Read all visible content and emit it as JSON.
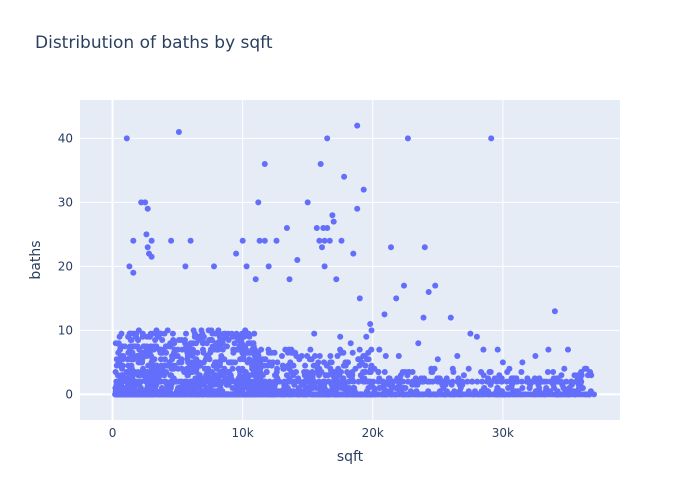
{
  "chart_data": {
    "type": "scatter",
    "title": "Distribution of baths by sqft",
    "xlabel": "sqft",
    "ylabel": "baths",
    "xlim": [
      -2500,
      39000
    ],
    "ylim": [
      -4,
      46
    ],
    "x_ticks": [
      {
        "value": 0,
        "label": "0"
      },
      {
        "value": 10000,
        "label": "10k"
      },
      {
        "value": 20000,
        "label": "20k"
      },
      {
        "value": 30000,
        "label": "30k"
      }
    ],
    "y_ticks": [
      {
        "value": 0,
        "label": "0"
      },
      {
        "value": 10,
        "label": "10"
      },
      {
        "value": 20,
        "label": "20"
      },
      {
        "value": 30,
        "label": "30"
      },
      {
        "value": 40,
        "label": "40"
      }
    ],
    "grid": true,
    "marker_color": "#636efa",
    "plot_background": "#e5ecf6",
    "points": [
      [
        1100,
        40
      ],
      [
        5100,
        41
      ],
      [
        16500,
        40
      ],
      [
        18800,
        42
      ],
      [
        22700,
        40
      ],
      [
        29100,
        40
      ],
      [
        11700,
        36
      ],
      [
        16000,
        36
      ],
      [
        17800,
        34
      ],
      [
        19300,
        32
      ],
      [
        2200,
        30
      ],
      [
        2500,
        30
      ],
      [
        2700,
        29
      ],
      [
        11200,
        30
      ],
      [
        15000,
        30
      ],
      [
        18800,
        29
      ],
      [
        16900,
        28
      ],
      [
        17000,
        27
      ],
      [
        13400,
        26
      ],
      [
        15700,
        26
      ],
      [
        16200,
        26
      ],
      [
        16500,
        26
      ],
      [
        2600,
        25
      ],
      [
        1600,
        24
      ],
      [
        3000,
        24
      ],
      [
        4500,
        24
      ],
      [
        6000,
        24
      ],
      [
        10000,
        24
      ],
      [
        11300,
        24
      ],
      [
        11700,
        24
      ],
      [
        12600,
        24
      ],
      [
        15900,
        24
      ],
      [
        16300,
        24
      ],
      [
        16700,
        24
      ],
      [
        17600,
        24
      ],
      [
        2700,
        23
      ],
      [
        21400,
        23
      ],
      [
        24000,
        23
      ],
      [
        16100,
        23
      ],
      [
        2800,
        22
      ],
      [
        3000,
        21.5
      ],
      [
        9500,
        22
      ],
      [
        18500,
        22
      ],
      [
        14200,
        21
      ],
      [
        1300,
        20
      ],
      [
        1600,
        19
      ],
      [
        5600,
        20
      ],
      [
        7800,
        20
      ],
      [
        10300,
        20
      ],
      [
        12000,
        20
      ],
      [
        16300,
        20
      ],
      [
        11000,
        18
      ],
      [
        13600,
        18
      ],
      [
        17200,
        18
      ],
      [
        19000,
        15
      ],
      [
        21800,
        15
      ],
      [
        22400,
        17
      ],
      [
        24800,
        17
      ],
      [
        24300,
        16
      ],
      [
        26000,
        12
      ],
      [
        19800,
        11
      ],
      [
        20900,
        12.5
      ],
      [
        23900,
        12
      ],
      [
        27500,
        9.5
      ],
      [
        28000,
        9
      ],
      [
        28500,
        7
      ],
      [
        29600,
        7
      ],
      [
        30000,
        5
      ],
      [
        34000,
        13
      ],
      [
        35000,
        7
      ],
      [
        33500,
        7
      ],
      [
        31500,
        5
      ],
      [
        30500,
        4
      ],
      [
        32500,
        6
      ],
      [
        26500,
        6
      ],
      [
        25000,
        5.5
      ],
      [
        22000,
        6
      ],
      [
        23500,
        8
      ],
      [
        20500,
        7
      ],
      [
        21000,
        6
      ],
      [
        18300,
        8
      ],
      [
        17500,
        9
      ],
      [
        15500,
        9.5
      ],
      [
        19500,
        9
      ],
      [
        19900,
        10
      ],
      [
        36300,
        4
      ],
      [
        36700,
        3.5
      ],
      [
        35500,
        3
      ],
      [
        37000,
        0
      ],
      [
        33000,
        2
      ],
      [
        31000,
        2.5
      ],
      [
        27000,
        3
      ],
      [
        29000,
        2
      ],
      [
        24500,
        4
      ],
      [
        26800,
        2
      ]
    ]
  }
}
